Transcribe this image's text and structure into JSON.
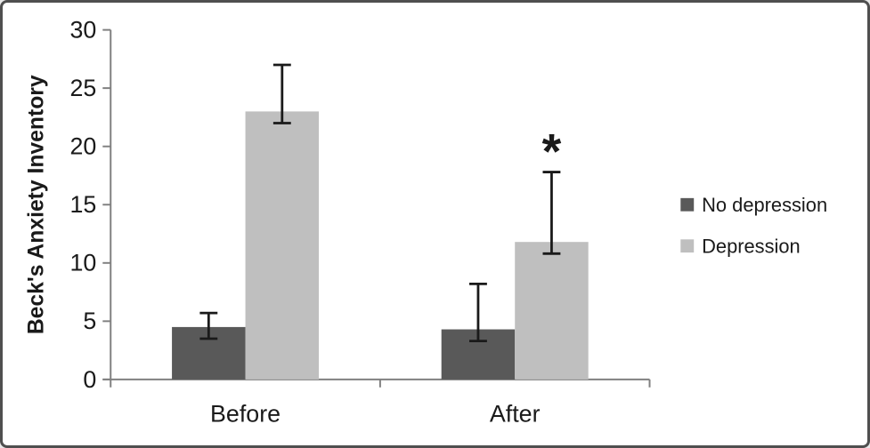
{
  "chart_data": {
    "type": "bar",
    "title": "",
    "ylabel": "Beck's Anxiety Inventory",
    "xlabel": "",
    "categories": [
      "Before",
      "After"
    ],
    "series": [
      {
        "name": "No depression",
        "color": "#595959",
        "values": [
          4.5,
          4.3
        ],
        "error_lo": [
          3.5,
          3.3
        ],
        "error_hi": [
          5.7,
          8.2
        ]
      },
      {
        "name": "Depression",
        "color": "#bfbfbf",
        "values": [
          23.0,
          11.8
        ],
        "error_lo": [
          22.0,
          10.8
        ],
        "error_hi": [
          27.0,
          17.8
        ]
      }
    ],
    "ylim": [
      0,
      30
    ],
    "yticks": [
      "0",
      "5",
      "10",
      "15",
      "20",
      "25",
      "30"
    ],
    "grid": false,
    "legend_position": "right",
    "annotations": [
      {
        "text": "*",
        "category_index": 1,
        "series_index": 1
      }
    ],
    "colors": {
      "axis": "#808080",
      "error_bar": "#1a1a1a",
      "text": "#1a1a1a",
      "background": "#ffffff",
      "frame_border": "#4f4f4f"
    }
  }
}
